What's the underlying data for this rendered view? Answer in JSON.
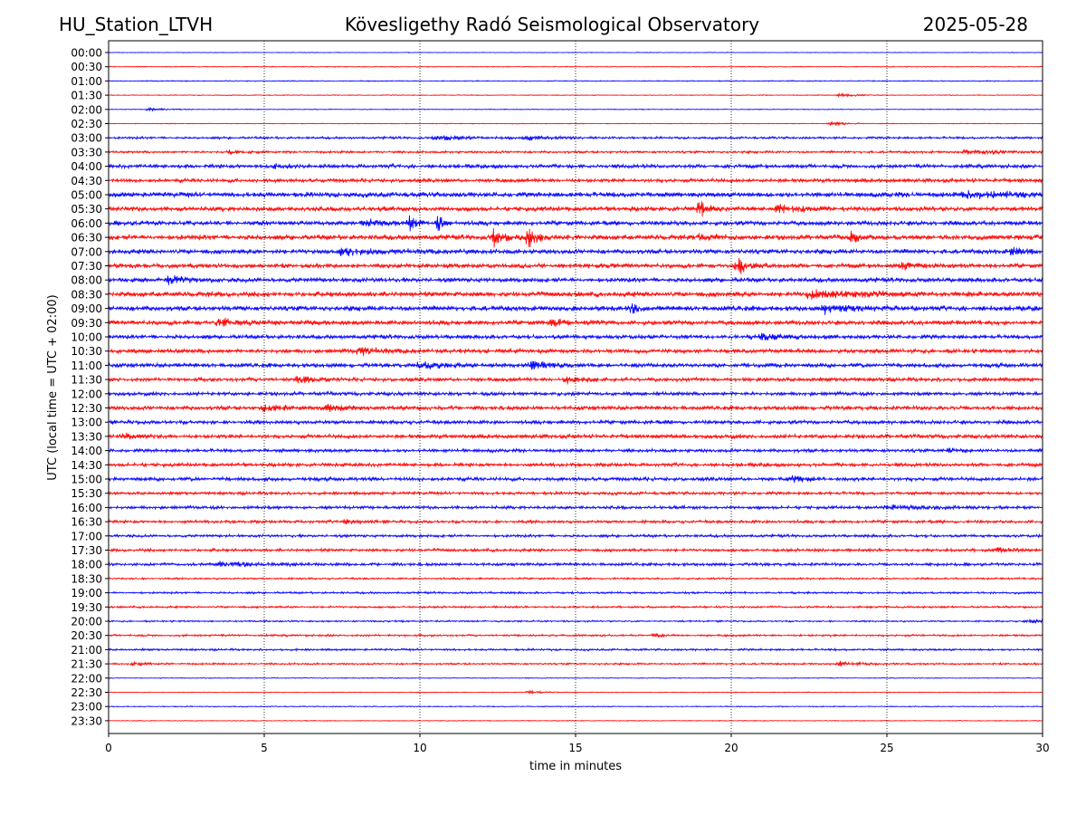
{
  "header": {
    "station": "HU_Station_LTVH",
    "observatory": "Kövesligethy Radó Seismological Observatory",
    "date": "2025-05-28"
  },
  "chart_data": {
    "type": "line",
    "title": "Kövesligethy Radó Seismological Observatory",
    "xlabel": "time in minutes",
    "ylabel": "UTC (local time = UTC + 02:00)",
    "xlim": [
      0,
      30
    ],
    "x_ticks": [
      "0",
      "5",
      "10",
      "15",
      "20",
      "25",
      "30"
    ],
    "x_tick_values": [
      0,
      5,
      10,
      15,
      20,
      25,
      30
    ],
    "vertical_gridlines_minutes": [
      5,
      10,
      15,
      20,
      25
    ],
    "grid": "vertical dotted at 5-minute intervals",
    "colors": {
      "even_hour_trace": "#0000ff",
      "half_hour_trace": "#ff0000",
      "grid": "#000000"
    },
    "rows": [
      "00:00",
      "00:30",
      "01:00",
      "01:30",
      "02:00",
      "02:30",
      "03:00",
      "03:30",
      "04:00",
      "04:30",
      "05:00",
      "05:30",
      "06:00",
      "06:30",
      "07:00",
      "07:30",
      "08:00",
      "08:30",
      "09:00",
      "09:30",
      "10:00",
      "10:30",
      "11:00",
      "11:30",
      "12:00",
      "12:30",
      "13:00",
      "13:30",
      "14:00",
      "14:30",
      "15:00",
      "15:30",
      "16:00",
      "16:30",
      "17:00",
      "17:30",
      "18:00",
      "18:30",
      "19:00",
      "19:30",
      "20:00",
      "20:30",
      "21:00",
      "21:30",
      "22:00",
      "22:30",
      "23:00",
      "23:30"
    ],
    "noise_level": [
      0.3,
      0.4,
      0.5,
      0.4,
      0.4,
      0.4,
      1.1,
      1.1,
      1.8,
      1.8,
      2.4,
      2.2,
      2.2,
      2.4,
      2.2,
      2.1,
      2.1,
      2.4,
      2.4,
      2.2,
      1.9,
      2.0,
      2.0,
      1.8,
      1.7,
      1.9,
      1.8,
      1.9,
      1.6,
      1.7,
      1.8,
      1.4,
      1.5,
      1.4,
      1.3,
      1.4,
      1.4,
      0.9,
      1.0,
      1.0,
      0.8,
      1.0,
      1.0,
      0.9,
      0.4,
      0.4,
      0.5,
      0.4
    ],
    "events": [
      {
        "row": "01:30",
        "minute": 23.5,
        "amplitude": 3,
        "duration": 0.8
      },
      {
        "row": "02:00",
        "minute": 1.3,
        "amplitude": 2,
        "duration": 1.0
      },
      {
        "row": "02:30",
        "minute": 23.2,
        "amplitude": 3,
        "duration": 0.8
      },
      {
        "row": "03:00",
        "minute": 10.5,
        "amplitude": 3,
        "duration": 2.0
      },
      {
        "row": "03:00",
        "minute": 13.5,
        "amplitude": 2.5,
        "duration": 1.5
      },
      {
        "row": "03:30",
        "minute": 3.9,
        "amplitude": 3,
        "duration": 0.8
      },
      {
        "row": "03:30",
        "minute": 27.5,
        "amplitude": 2.5,
        "duration": 2.0
      },
      {
        "row": "04:00",
        "minute": 5.2,
        "amplitude": 3.5,
        "duration": 1.0
      },
      {
        "row": "05:00",
        "minute": 27.5,
        "amplitude": 5,
        "duration": 3.0
      },
      {
        "row": "05:30",
        "minute": 19.0,
        "amplitude": 12,
        "duration": 0.4
      },
      {
        "row": "05:30",
        "minute": 21.5,
        "amplitude": 4,
        "duration": 1.5
      },
      {
        "row": "06:00",
        "minute": 9.7,
        "amplitude": 12,
        "duration": 0.3
      },
      {
        "row": "06:00",
        "minute": 10.6,
        "amplitude": 10,
        "duration": 0.3
      },
      {
        "row": "06:00",
        "minute": 8.2,
        "amplitude": 4,
        "duration": 1.0
      },
      {
        "row": "06:30",
        "minute": 12.4,
        "amplitude": 14,
        "duration": 0.4
      },
      {
        "row": "06:30",
        "minute": 13.5,
        "amplitude": 12,
        "duration": 0.5
      },
      {
        "row": "06:30",
        "minute": 19.0,
        "amplitude": 5,
        "duration": 0.6
      },
      {
        "row": "06:30",
        "minute": 23.9,
        "amplitude": 10,
        "duration": 0.3
      },
      {
        "row": "07:00",
        "minute": 7.5,
        "amplitude": 4,
        "duration": 2.0
      },
      {
        "row": "07:00",
        "minute": 29.0,
        "amplitude": 4,
        "duration": 1.0
      },
      {
        "row": "07:30",
        "minute": 20.2,
        "amplitude": 10,
        "duration": 0.8
      },
      {
        "row": "07:30",
        "minute": 25.5,
        "amplitude": 4,
        "duration": 1.5
      },
      {
        "row": "08:00",
        "minute": 1.9,
        "amplitude": 5,
        "duration": 1.0
      },
      {
        "row": "08:30",
        "minute": 22.5,
        "amplitude": 5,
        "duration": 3.0
      },
      {
        "row": "09:00",
        "minute": 16.8,
        "amplitude": 8,
        "duration": 0.3
      },
      {
        "row": "09:00",
        "minute": 23.0,
        "amplitude": 5,
        "duration": 1.5
      },
      {
        "row": "09:30",
        "minute": 3.5,
        "amplitude": 4,
        "duration": 2.0
      },
      {
        "row": "09:30",
        "minute": 14.2,
        "amplitude": 4,
        "duration": 1.0
      },
      {
        "row": "10:00",
        "minute": 21.0,
        "amplitude": 4,
        "duration": 1.5
      },
      {
        "row": "10:30",
        "minute": 8.0,
        "amplitude": 5,
        "duration": 1.2
      },
      {
        "row": "11:00",
        "minute": 10.0,
        "amplitude": 4,
        "duration": 1.5
      },
      {
        "row": "11:00",
        "minute": 13.5,
        "amplitude": 4,
        "duration": 1.5
      },
      {
        "row": "11:30",
        "minute": 6.1,
        "amplitude": 6,
        "duration": 0.8
      },
      {
        "row": "11:30",
        "minute": 14.7,
        "amplitude": 5,
        "duration": 0.8
      },
      {
        "row": "12:30",
        "minute": 5.0,
        "amplitude": 5,
        "duration": 1.2
      },
      {
        "row": "12:30",
        "minute": 7.0,
        "amplitude": 4,
        "duration": 1.0
      },
      {
        "row": "13:30",
        "minute": 0.5,
        "amplitude": 3,
        "duration": 0.8
      },
      {
        "row": "14:00",
        "minute": 27.0,
        "amplitude": 3,
        "duration": 0.6
      },
      {
        "row": "15:00",
        "minute": 22.0,
        "amplitude": 4,
        "duration": 1.0
      },
      {
        "row": "16:00",
        "minute": 25.0,
        "amplitude": 3,
        "duration": 2.0
      },
      {
        "row": "16:30",
        "minute": 7.6,
        "amplitude": 3,
        "duration": 0.6
      },
      {
        "row": "17:30",
        "minute": 28.5,
        "amplitude": 3,
        "duration": 1.2
      },
      {
        "row": "18:00",
        "minute": 3.5,
        "amplitude": 3,
        "duration": 2.5
      },
      {
        "row": "20:00",
        "minute": 29.5,
        "amplitude": 2.5,
        "duration": 0.8
      },
      {
        "row": "20:30",
        "minute": 17.5,
        "amplitude": 2,
        "duration": 0.5
      },
      {
        "row": "21:30",
        "minute": 23.5,
        "amplitude": 3,
        "duration": 1.0
      },
      {
        "row": "21:30",
        "minute": 0.8,
        "amplitude": 2,
        "duration": 0.8
      },
      {
        "row": "22:30",
        "minute": 13.5,
        "amplitude": 2,
        "duration": 1.0
      }
    ]
  }
}
